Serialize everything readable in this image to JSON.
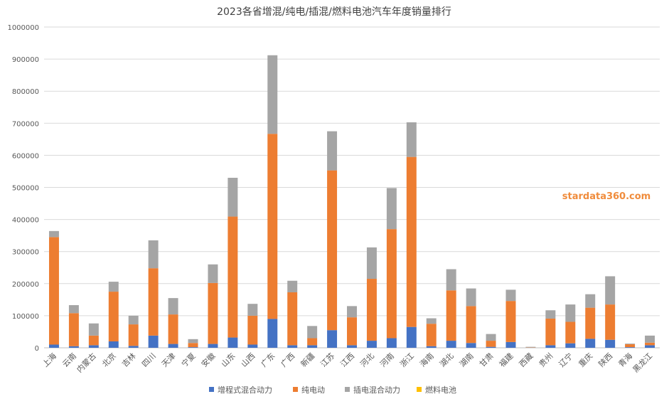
{
  "chart_data": {
    "type": "bar",
    "stacked": true,
    "title": "2023各省增混/纯电/插混/燃料电池汽车年度销量排行",
    "xlabel": "",
    "ylabel": "",
    "ylim": [
      0,
      1000000
    ],
    "yticks": [
      0,
      100000,
      200000,
      300000,
      400000,
      500000,
      600000,
      700000,
      800000,
      900000,
      1000000
    ],
    "ytick_labels": [
      "0",
      "100000",
      "200000",
      "300000",
      "400000",
      "500000",
      "600000",
      "700000",
      "800000",
      "900000",
      "1000000"
    ],
    "grid": true,
    "legend_position": "bottom",
    "watermark": "stardata360.com",
    "categories": [
      "上海",
      "云南",
      "内蒙古",
      "北京",
      "吉林",
      "四川",
      "天津",
      "宁夏",
      "安徽",
      "山东",
      "山西",
      "广东",
      "广西",
      "新疆",
      "江苏",
      "江西",
      "河北",
      "河南",
      "浙江",
      "海南",
      "湖北",
      "湖南",
      "甘肃",
      "福建",
      "西藏",
      "贵州",
      "辽宁",
      "重庆",
      "陕西",
      "青海",
      "黑龙江"
    ],
    "series": [
      {
        "name": "增程式混合动力",
        "color": "#4472c4",
        "values": [
          10000,
          5000,
          8000,
          20000,
          6000,
          38000,
          12000,
          2000,
          12000,
          32000,
          10000,
          90000,
          8000,
          8000,
          55000,
          8000,
          22000,
          30000,
          65000,
          5000,
          22000,
          15000,
          3000,
          18000,
          500,
          8000,
          14000,
          28000,
          25000,
          2000,
          8000
        ]
      },
      {
        "name": "纯电动",
        "color": "#ed7d31",
        "values": [
          335000,
          103000,
          30000,
          155000,
          67000,
          210000,
          92000,
          13000,
          190000,
          377000,
          90000,
          577000,
          165000,
          22000,
          498000,
          87000,
          193000,
          340000,
          530000,
          70000,
          157000,
          115000,
          19000,
          128000,
          1000,
          83000,
          67000,
          97000,
          110000,
          9000,
          8000
        ]
      },
      {
        "name": "插电混合动力",
        "color": "#a5a5a5",
        "values": [
          19000,
          25000,
          38000,
          31000,
          27000,
          87000,
          51000,
          12000,
          58000,
          121000,
          37000,
          245000,
          36000,
          38000,
          122000,
          35000,
          98000,
          128000,
          108000,
          17000,
          66000,
          55000,
          21000,
          35000,
          1500,
          26000,
          54000,
          42000,
          88000,
          2000,
          22000
        ]
      },
      {
        "name": "燃料电池",
        "color": "#ffc000",
        "values": [
          0,
          0,
          0,
          0,
          0,
          0,
          0,
          0,
          0,
          0,
          0,
          0,
          0,
          0,
          0,
          0,
          0,
          0,
          0,
          0,
          0,
          0,
          0,
          0,
          0,
          0,
          0,
          0,
          0,
          0,
          0
        ]
      }
    ]
  }
}
